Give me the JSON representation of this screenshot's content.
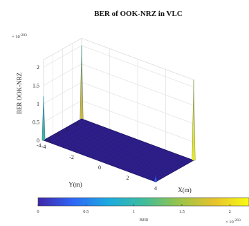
{
  "chart_data": {
    "type": "surface",
    "title": "BER of OOK-NRZ in VLC",
    "xlabel": "X(m)",
    "ylabel": "Y(m)",
    "zlabel": "BER OOK-NRZ",
    "z_exponent": "× 10",
    "z_exponent_power": "-203",
    "xlim": [
      -4,
      4
    ],
    "ylim": [
      -4,
      4
    ],
    "zlim": [
      0,
      2.2
    ],
    "x_ticks": [
      "-4",
      "-2",
      "0",
      "2",
      "4"
    ],
    "y_ticks": [
      "-4",
      "-2",
      "0",
      "2",
      "4"
    ],
    "z_ticks": [
      "0",
      "0.5",
      "1",
      "1.5",
      "2"
    ],
    "surface_value": 0,
    "spikes": [
      {
        "x": -4,
        "y": 4,
        "z": 2.0
      },
      {
        "x": 4,
        "y": 4,
        "z": 2.2
      },
      {
        "x": -4,
        "y": -4,
        "z": 1.2
      },
      {
        "x": 4,
        "y": -4,
        "z": 0.2
      }
    ],
    "colorbar": {
      "label": "BER",
      "ticks": [
        "0",
        "0.5",
        "1",
        "1.5",
        "2"
      ],
      "range": [
        0,
        2.2
      ],
      "exponent": "× 10",
      "exponent_power": "-203",
      "colormap": [
        "#3e26a8",
        "#2f67f7",
        "#1caadf",
        "#3fbc9c",
        "#98c44b",
        "#e6c22d",
        "#f9fb14"
      ]
    },
    "grid": true
  }
}
